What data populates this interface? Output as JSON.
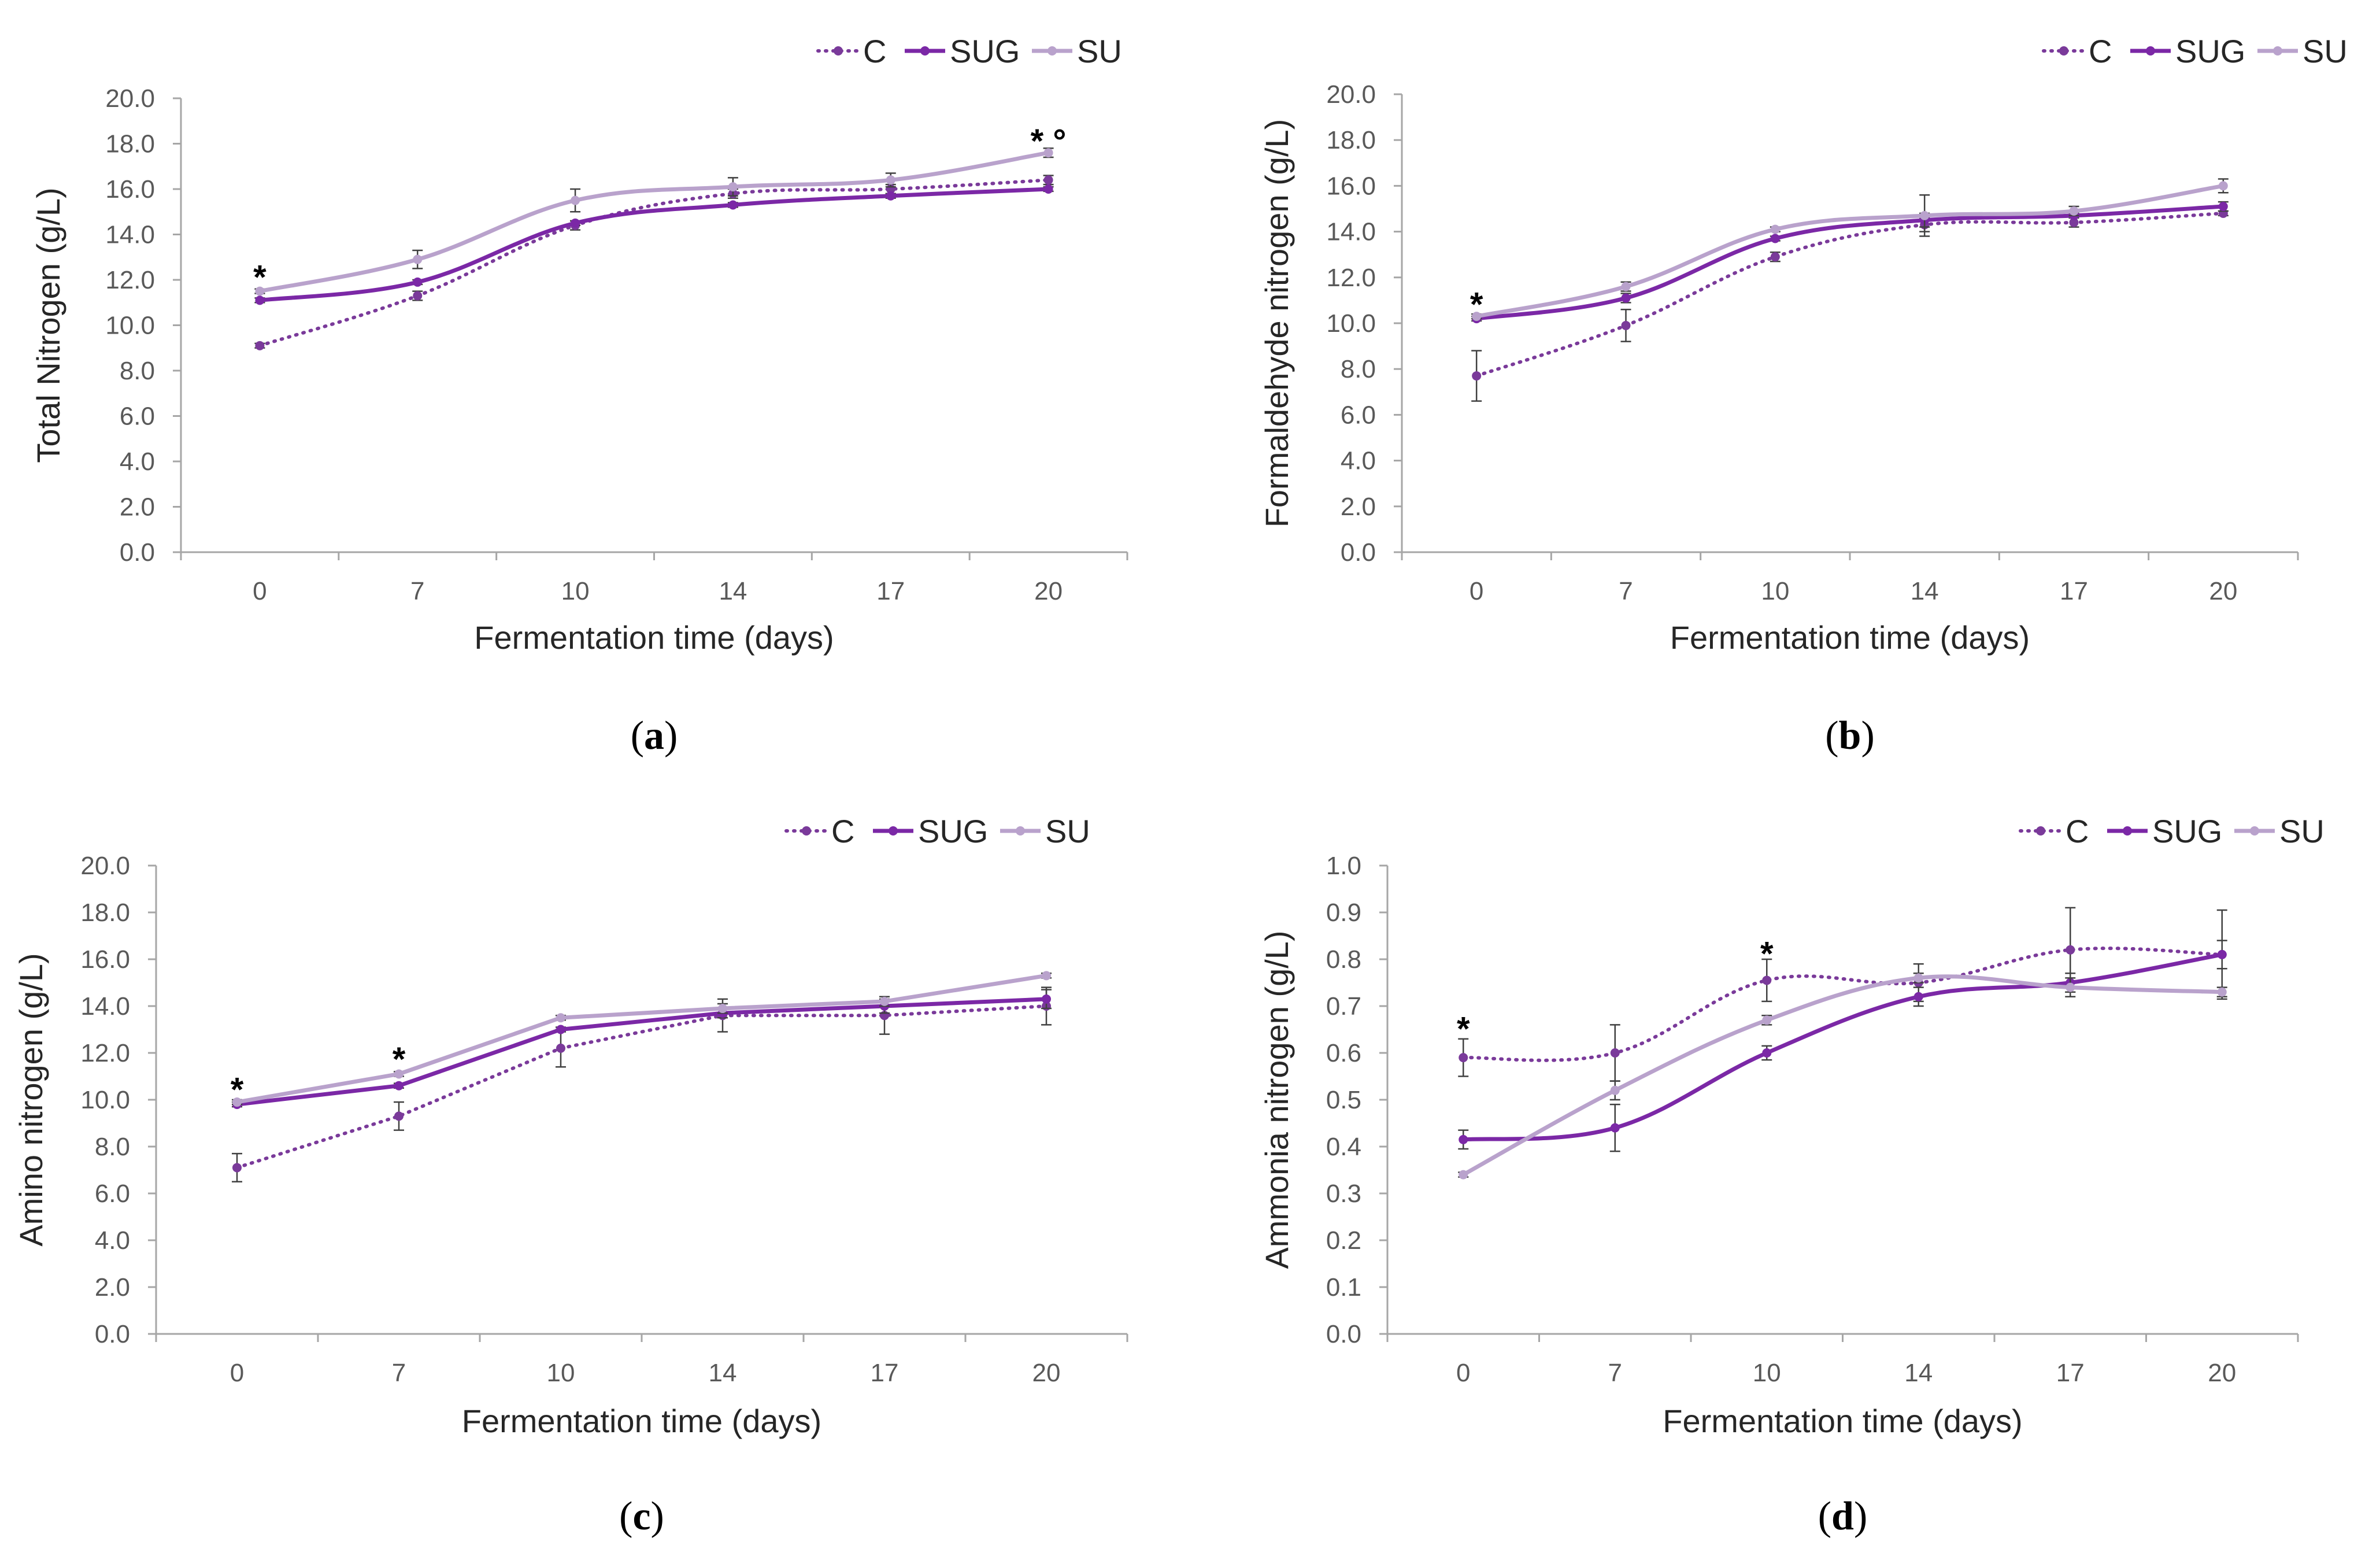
{
  "colors": {
    "C": "#7a3a9a",
    "SUG": "#7b28a6",
    "SU": "#b9a2cc",
    "axis": "#a6a6a6",
    "error": "#404040"
  },
  "chart_data": [
    {
      "panel": "a",
      "panel_label": [
        "(",
        "a",
        ")"
      ],
      "type": "line",
      "categories": [
        "0",
        "7",
        "10",
        "14",
        "17",
        "20"
      ],
      "ylabel": "Total Nitrogen (g/L)",
      "xlabel": "Fermentation time (days)",
      "ylim": [
        0,
        20
      ],
      "ystep": 2,
      "ytick_labels": [
        "0.0",
        "2.0",
        "4.0",
        "6.0",
        "8.0",
        "10.0",
        "12.0",
        "14.0",
        "16.0",
        "18.0",
        "20.0"
      ],
      "legend": [
        "C",
        "SUG",
        "SU"
      ],
      "legend_position": "top-right",
      "smooth": true,
      "series": [
        {
          "name": "C",
          "style": "dotted",
          "values": [
            9.1,
            11.3,
            14.4,
            15.8,
            16.0,
            16.4
          ],
          "errors": [
            0.1,
            0.2,
            0.2,
            0.2,
            0.2,
            0.2
          ]
        },
        {
          "name": "SUG",
          "style": "solid",
          "values": [
            11.1,
            11.9,
            14.5,
            15.3,
            15.7,
            16.0
          ],
          "errors": [
            0.1,
            0.1,
            0.1,
            0.1,
            0.1,
            0.1
          ]
        },
        {
          "name": "SU",
          "style": "solid",
          "values": [
            11.5,
            12.9,
            15.5,
            16.1,
            16.4,
            17.6
          ],
          "errors": [
            0.1,
            0.4,
            0.5,
            0.4,
            0.3,
            0.2
          ]
        }
      ],
      "annotations": [
        {
          "category": "0",
          "value": 12.5,
          "text": "*"
        },
        {
          "category": "20",
          "value": 18.5,
          "text": "* °"
        }
      ]
    },
    {
      "panel": "b",
      "panel_label": [
        "(",
        "b",
        ")"
      ],
      "type": "line",
      "categories": [
        "0",
        "7",
        "10",
        "14",
        "17",
        "20"
      ],
      "ylabel": "Formaldehyde nitrogen (g/L)",
      "xlabel": "Fermentation time (days)",
      "ylim": [
        0,
        20
      ],
      "ystep": 2,
      "ytick_labels": [
        "0.0",
        "2.0",
        "4.0",
        "6.0",
        "8.0",
        "10.0",
        "12.0",
        "14.0",
        "16.0",
        "18.0",
        "20.0"
      ],
      "legend": [
        "C",
        "SUG",
        "SU"
      ],
      "legend_position": "top-right",
      "smooth": true,
      "series": [
        {
          "name": "C",
          "style": "dotted",
          "values": [
            7.7,
            9.9,
            12.9,
            14.3,
            14.4,
            14.8
          ],
          "errors": [
            1.1,
            0.7,
            0.2,
            0.3,
            0.2,
            0.1
          ]
        },
        {
          "name": "SUG",
          "style": "solid",
          "values": [
            10.2,
            11.1,
            13.7,
            14.5,
            14.7,
            15.1
          ],
          "errors": [
            0.1,
            0.2,
            0.1,
            0.3,
            0.1,
            0.2
          ]
        },
        {
          "name": "SU",
          "style": "solid",
          "values": [
            10.3,
            11.6,
            14.1,
            14.7,
            14.9,
            16.0
          ],
          "errors": [
            0.1,
            0.2,
            0.1,
            0.9,
            0.2,
            0.3
          ]
        }
      ],
      "annotations": [
        {
          "category": "0",
          "value": 11.2,
          "text": "*"
        }
      ]
    },
    {
      "panel": "c",
      "panel_label": [
        "(",
        "c",
        ")"
      ],
      "type": "line",
      "categories": [
        "0",
        "7",
        "10",
        "14",
        "17",
        "20"
      ],
      "ylabel": "Amino nitrogen (g/L)",
      "xlabel": "Fermentation time (days)",
      "ylim": [
        0,
        20
      ],
      "ystep": 2,
      "ytick_labels": [
        "0.0",
        "2.0",
        "4.0",
        "6.0",
        "8.0",
        "10.0",
        "12.0",
        "14.0",
        "16.0",
        "18.0",
        "20.0"
      ],
      "legend": [
        "C",
        "SUG",
        "SU"
      ],
      "legend_position": "top-right",
      "smooth": false,
      "series": [
        {
          "name": "C",
          "style": "dotted",
          "values": [
            7.1,
            9.3,
            12.2,
            13.6,
            13.6,
            14.0
          ],
          "errors": [
            0.6,
            0.6,
            0.8,
            0.7,
            0.8,
            0.8
          ]
        },
        {
          "name": "SUG",
          "style": "solid",
          "values": [
            9.8,
            10.6,
            13.0,
            13.7,
            14.0,
            14.3
          ],
          "errors": [
            0.1,
            0.1,
            0.1,
            0.2,
            0.3,
            0.4
          ]
        },
        {
          "name": "SU",
          "style": "solid",
          "values": [
            9.9,
            11.1,
            13.5,
            13.9,
            14.2,
            15.3
          ],
          "errors": [
            0.1,
            0.1,
            0.1,
            0.2,
            0.2,
            0.1
          ]
        }
      ],
      "annotations": [
        {
          "category": "0",
          "value": 10.8,
          "text": "*"
        },
        {
          "category": "7",
          "value": 12.1,
          "text": "*"
        }
      ]
    },
    {
      "panel": "d",
      "panel_label": [
        "(",
        "d",
        ")"
      ],
      "type": "line",
      "categories": [
        "0",
        "7",
        "10",
        "14",
        "17",
        "20"
      ],
      "ylabel": "Ammonia nitrogen (g/L)",
      "xlabel": "Fermentation time (days)",
      "ylim": [
        0,
        1
      ],
      "ystep": 0.1,
      "ytick_labels": [
        "0.0",
        "0.1",
        "0.2",
        "0.3",
        "0.4",
        "0.5",
        "0.6",
        "0.7",
        "0.8",
        "0.9",
        "1.0"
      ],
      "legend": [
        "C",
        "SUG",
        "SU"
      ],
      "legend_position": "top-right",
      "smooth": true,
      "series": [
        {
          "name": "C",
          "style": "dotted",
          "values": [
            0.59,
            0.6,
            0.755,
            0.75,
            0.82,
            0.81
          ],
          "errors": [
            0.04,
            0.06,
            0.045,
            0.04,
            0.09,
            0.095
          ]
        },
        {
          "name": "SUG",
          "style": "solid",
          "values": [
            0.415,
            0.44,
            0.6,
            0.72,
            0.75,
            0.81
          ],
          "errors": [
            0.02,
            0.05,
            0.015,
            0.02,
            0.02,
            0.03
          ]
        },
        {
          "name": "SU",
          "style": "solid",
          "values": [
            0.34,
            0.52,
            0.67,
            0.76,
            0.74,
            0.73
          ],
          "errors": [
            0.005,
            0.02,
            0.01,
            0.01,
            0.02,
            0.01
          ]
        }
      ],
      "annotations": [
        {
          "category": "0",
          "value": 0.67,
          "text": "*"
        },
        {
          "category": "10",
          "value": 0.83,
          "text": "*"
        }
      ]
    }
  ]
}
